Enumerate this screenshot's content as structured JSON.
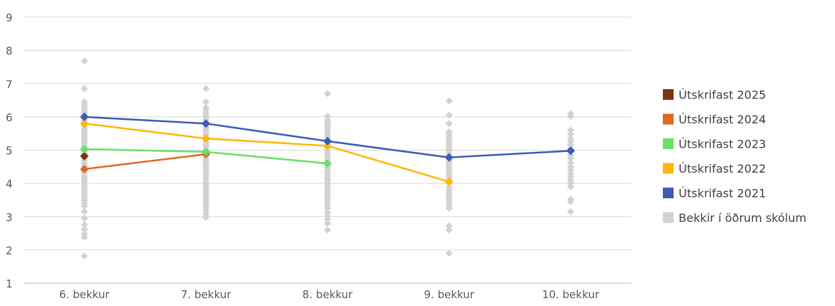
{
  "chart_data": {
    "type": "line",
    "title": "",
    "xlabel": "",
    "ylabel": "",
    "categories": [
      "6. bekkur",
      "7. bekkur",
      "8. bekkur",
      "9. bekkur",
      "10. bekkur"
    ],
    "ylim": [
      1,
      9
    ],
    "yticks": [
      "1",
      "2",
      "3",
      "4",
      "5",
      "6",
      "7",
      "8",
      "9"
    ],
    "grid": true,
    "legend_position": "right",
    "series": [
      {
        "name": "Útskrifast 2025",
        "color": "#7b3511",
        "values": [
          4.82,
          null,
          null,
          null,
          null
        ]
      },
      {
        "name": "Útskrifast 2024",
        "color": "#e2671f",
        "values": [
          4.43,
          4.88,
          null,
          null,
          null
        ]
      },
      {
        "name": "Útskrifast 2023",
        "color": "#6adf6a",
        "values": [
          5.03,
          4.95,
          4.6,
          null,
          null
        ]
      },
      {
        "name": "Útskrifast 2022",
        "color": "#ffb703",
        "values": [
          5.8,
          5.35,
          5.13,
          4.05,
          null
        ]
      },
      {
        "name": "Útskrifast 2021",
        "color": "#3d5bb5",
        "values": [
          6.0,
          5.8,
          5.27,
          4.78,
          4.98
        ]
      }
    ],
    "other_schools": {
      "name": "Bekkir í öðrum skólum",
      "color": "#d2d2d2",
      "values": [
        [
          7.68,
          6.85,
          6.45,
          6.38,
          6.3,
          6.22,
          6.15,
          6.08,
          5.95,
          5.88,
          5.8,
          5.72,
          5.65,
          5.58,
          5.5,
          5.42,
          5.35,
          5.28,
          5.2,
          5.12,
          5.05,
          4.98,
          4.9,
          4.83,
          4.75,
          4.68,
          4.6,
          4.52,
          4.45,
          4.38,
          4.3,
          4.22,
          4.15,
          4.08,
          4.0,
          3.92,
          3.85,
          3.78,
          3.7,
          3.62,
          3.55,
          3.48,
          3.4,
          3.32,
          3.15,
          2.95,
          2.75,
          2.62,
          2.48,
          2.38,
          1.82
        ],
        [
          6.85,
          6.45,
          6.28,
          6.2,
          6.12,
          6.05,
          5.98,
          5.9,
          5.82,
          5.75,
          5.68,
          5.6,
          5.52,
          5.45,
          5.38,
          5.3,
          5.22,
          5.15,
          5.08,
          5.0,
          4.92,
          4.85,
          4.78,
          4.7,
          4.62,
          4.55,
          4.48,
          4.4,
          4.32,
          4.25,
          4.18,
          4.1,
          4.02,
          3.95,
          3.88,
          3.8,
          3.72,
          3.65,
          3.58,
          3.5,
          3.42,
          3.35,
          3.28,
          3.18,
          3.08,
          2.98
        ],
        [
          6.7,
          6.02,
          5.9,
          5.82,
          5.75,
          5.68,
          5.6,
          5.52,
          5.45,
          5.38,
          5.3,
          5.22,
          5.15,
          5.08,
          5.0,
          4.92,
          4.85,
          4.78,
          4.7,
          4.62,
          4.55,
          4.48,
          4.4,
          4.32,
          4.25,
          4.18,
          4.1,
          4.02,
          3.95,
          3.88,
          3.8,
          3.72,
          3.65,
          3.58,
          3.5,
          3.42,
          3.35,
          3.25,
          3.12,
          3.02,
          2.92,
          2.8,
          2.6
        ],
        [
          6.48,
          6.05,
          5.8,
          5.55,
          5.48,
          5.4,
          5.32,
          5.25,
          5.18,
          5.1,
          5.02,
          4.95,
          4.88,
          4.8,
          4.72,
          4.65,
          4.58,
          4.5,
          4.42,
          4.35,
          4.28,
          4.2,
          4.12,
          4.0,
          3.88,
          3.8,
          3.72,
          3.65,
          3.58,
          3.5,
          3.42,
          3.35,
          3.25,
          2.72,
          2.6,
          1.9
        ],
        [
          6.1,
          6.02,
          5.6,
          5.48,
          5.35,
          5.25,
          5.15,
          5.05,
          4.95,
          4.85,
          4.75,
          4.62,
          4.5,
          4.4,
          4.3,
          4.2,
          4.1,
          4.0,
          3.9,
          3.52,
          3.45,
          3.15
        ]
      ]
    }
  }
}
